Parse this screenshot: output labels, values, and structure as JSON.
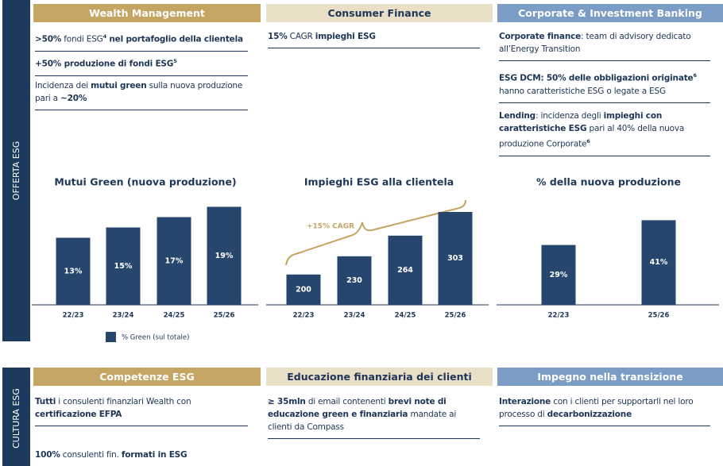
{
  "side_labels": [
    "OFFERTA ESG",
    "CULTURA ESG"
  ],
  "columns": [
    {
      "header": "Wealth Management",
      "items": [
        [
          {
            "t": ">50%",
            "b": true
          },
          {
            "t": " fondi ESG"
          },
          {
            "t": "4",
            "sup": true
          },
          {
            "t": " nel portafoglio della clientela",
            "b": true
          }
        ],
        [
          {
            "t": "+50% produzione di fondi ESG",
            "b": true
          },
          {
            "t": "5",
            "sup": true
          }
        ],
        [
          {
            "t": "Incidenza dei "
          },
          {
            "t": "mutui green",
            "b": true
          },
          {
            "t": " sulla nuova produzione pari a "
          },
          {
            "t": "~20%",
            "b": true
          }
        ]
      ]
    },
    {
      "header": "Consumer Finance",
      "items": [
        [
          {
            "t": "15%",
            "b": true
          },
          {
            "t": " CAGR "
          },
          {
            "t": "impieghi ESG",
            "b": true
          }
        ]
      ]
    },
    {
      "header": "Corporate & Investment Banking",
      "items": [
        [
          {
            "t": "Corporate finance",
            "b": true
          },
          {
            "t": ": team di advisory dedicato all’Energy Transition"
          }
        ],
        [
          {
            "t": "ESG DCM: 50% delle obbligazioni originate",
            "b": true
          },
          {
            "t": "6",
            "sup": true
          },
          {
            "t": " hanno caratteristiche ESG o legate a ESG"
          }
        ],
        [
          {
            "t": "Lending",
            "b": true
          },
          {
            "t": ": incidenza degli "
          },
          {
            "t": "impieghi con caratteristiche ESG",
            "b": true
          },
          {
            "t": " pari al 40% della nuova produzione Corporate"
          },
          {
            "t": "6",
            "sup": true
          }
        ]
      ]
    }
  ],
  "bottom_columns": [
    {
      "header": "Competenze ESG",
      "items": [
        [
          {
            "t": "Tutti",
            "b": true
          },
          {
            "t": " i consulenti finanziari Wealth con "
          },
          {
            "t": "certificazione EFPA",
            "b": true
          }
        ],
        [
          {
            "t": "100%",
            "b": true
          },
          {
            "t": " consulenti fin. "
          },
          {
            "t": "formati in ESG",
            "b": true
          }
        ]
      ]
    },
    {
      "header": "Educazione finanziaria dei clienti",
      "items": [
        [
          {
            "t": "≥ 35mln",
            "b": true
          },
          {
            "t": " di email contenenti "
          },
          {
            "t": "brevi note di educazione green e finanziaria",
            "b": true
          },
          {
            "t": " mandate ai clienti da Compass"
          }
        ]
      ]
    },
    {
      "header": "Impegno nella transizione",
      "items": [
        [
          {
            "t": "Interazione",
            "b": true
          },
          {
            "t": " con i clienti per supportarli nel loro processo di "
          },
          {
            "t": "decarbonizzazione",
            "b": true
          }
        ]
      ]
    }
  ],
  "chart_data": [
    {
      "type": "bar",
      "title": "Mutui Green (nuova produzione)",
      "categories": [
        "22/23",
        "23/24",
        "24/25",
        "25/26"
      ],
      "series": [
        {
          "name": "% Green (sul totale)",
          "color": "#27466d",
          "values": [
            13,
            15,
            17,
            19
          ],
          "value_labels": [
            "13%",
            "15%",
            "17%",
            "19%"
          ]
        }
      ],
      "ylim": [
        0,
        20
      ],
      "legend": "bottom"
    },
    {
      "type": "bar",
      "title": "Impieghi ESG alla clientela",
      "categories": [
        "22/23",
        "23/24",
        "24/25",
        "25/26"
      ],
      "values": [
        200,
        230,
        264,
        303
      ],
      "color": "#27466d",
      "annotations": [
        "+15% CAGR"
      ],
      "ylim": [
        150,
        320
      ]
    },
    {
      "type": "bar",
      "title": "% della nuova produzione",
      "categories": [
        "22/23",
        "25/26"
      ],
      "values": [
        29,
        41
      ],
      "value_labels": [
        "29%",
        "41%"
      ],
      "color": "#27466d",
      "ylim": [
        0,
        50
      ]
    }
  ]
}
